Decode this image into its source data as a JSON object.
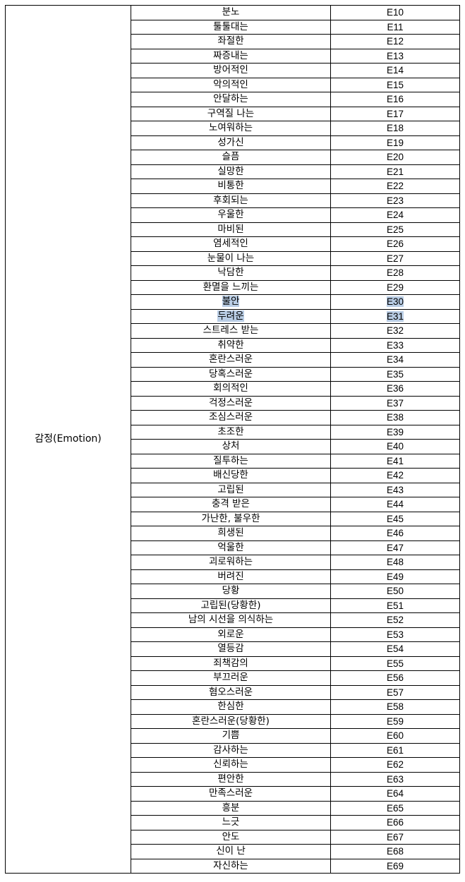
{
  "table": {
    "category_label": "감정(Emotion)",
    "highlight_color": "#b9cde5",
    "rows": [
      {
        "name": "분노",
        "code": "E10"
      },
      {
        "name": "툴툴대는",
        "code": "E11"
      },
      {
        "name": "좌절한",
        "code": "E12"
      },
      {
        "name": "짜증내는",
        "code": "E13"
      },
      {
        "name": "방어적인",
        "code": "E14"
      },
      {
        "name": "악의적인",
        "code": "E15"
      },
      {
        "name": "안달하는",
        "code": "E16"
      },
      {
        "name": "구역질 나는",
        "code": "E17"
      },
      {
        "name": "노여워하는",
        "code": "E18"
      },
      {
        "name": "성가신",
        "code": "E19"
      },
      {
        "name": "슬픔",
        "code": "E20"
      },
      {
        "name": "실망한",
        "code": "E21"
      },
      {
        "name": "비통한",
        "code": "E22"
      },
      {
        "name": "후회되는",
        "code": "E23"
      },
      {
        "name": "우울한",
        "code": "E24"
      },
      {
        "name": "마비된",
        "code": "E25"
      },
      {
        "name": "염세적인",
        "code": "E26"
      },
      {
        "name": "눈물이 나는",
        "code": "E27"
      },
      {
        "name": "낙담한",
        "code": "E28"
      },
      {
        "name": "환멸을 느끼는",
        "code": "E29"
      },
      {
        "name": "불안",
        "code": "E30",
        "highlight": true
      },
      {
        "name": "두려운",
        "code": "E31",
        "highlight": true
      },
      {
        "name": "스트레스 받는",
        "code": "E32"
      },
      {
        "name": "취약한",
        "code": "E33"
      },
      {
        "name": "혼란스러운",
        "code": "E34"
      },
      {
        "name": "당혹스러운",
        "code": "E35"
      },
      {
        "name": "회의적인",
        "code": "E36"
      },
      {
        "name": "걱정스러운",
        "code": "E37"
      },
      {
        "name": "조심스러운",
        "code": "E38"
      },
      {
        "name": "초조한",
        "code": "E39"
      },
      {
        "name": "상처",
        "code": "E40"
      },
      {
        "name": "질투하는",
        "code": "E41"
      },
      {
        "name": "배신당한",
        "code": "E42"
      },
      {
        "name": "고립된",
        "code": "E43"
      },
      {
        "name": "충격 받은",
        "code": "E44"
      },
      {
        "name": "가난한, 불우한",
        "code": "E45"
      },
      {
        "name": "희생된",
        "code": "E46"
      },
      {
        "name": "억울한",
        "code": "E47"
      },
      {
        "name": "괴로워하는",
        "code": "E48"
      },
      {
        "name": "버려진",
        "code": "E49"
      },
      {
        "name": "당황",
        "code": "E50"
      },
      {
        "name": "고립된(당황한)",
        "code": "E51"
      },
      {
        "name": "남의 시선을 의식하는",
        "code": "E52"
      },
      {
        "name": "외로운",
        "code": "E53"
      },
      {
        "name": "열등감",
        "code": "E54"
      },
      {
        "name": "죄책감의",
        "code": "E55"
      },
      {
        "name": "부끄러운",
        "code": "E56"
      },
      {
        "name": "혐오스러운",
        "code": "E57"
      },
      {
        "name": "한심한",
        "code": "E58"
      },
      {
        "name": "혼란스러운(당황한)",
        "code": "E59"
      },
      {
        "name": "기쁨",
        "code": "E60"
      },
      {
        "name": "감사하는",
        "code": "E61"
      },
      {
        "name": "신뢰하는",
        "code": "E62"
      },
      {
        "name": "편안한",
        "code": "E63"
      },
      {
        "name": "만족스러운",
        "code": "E64"
      },
      {
        "name": "흥분",
        "code": "E65"
      },
      {
        "name": "느긋",
        "code": "E66"
      },
      {
        "name": "안도",
        "code": "E67"
      },
      {
        "name": "신이 난",
        "code": "E68"
      },
      {
        "name": "자신하는",
        "code": "E69"
      }
    ]
  }
}
